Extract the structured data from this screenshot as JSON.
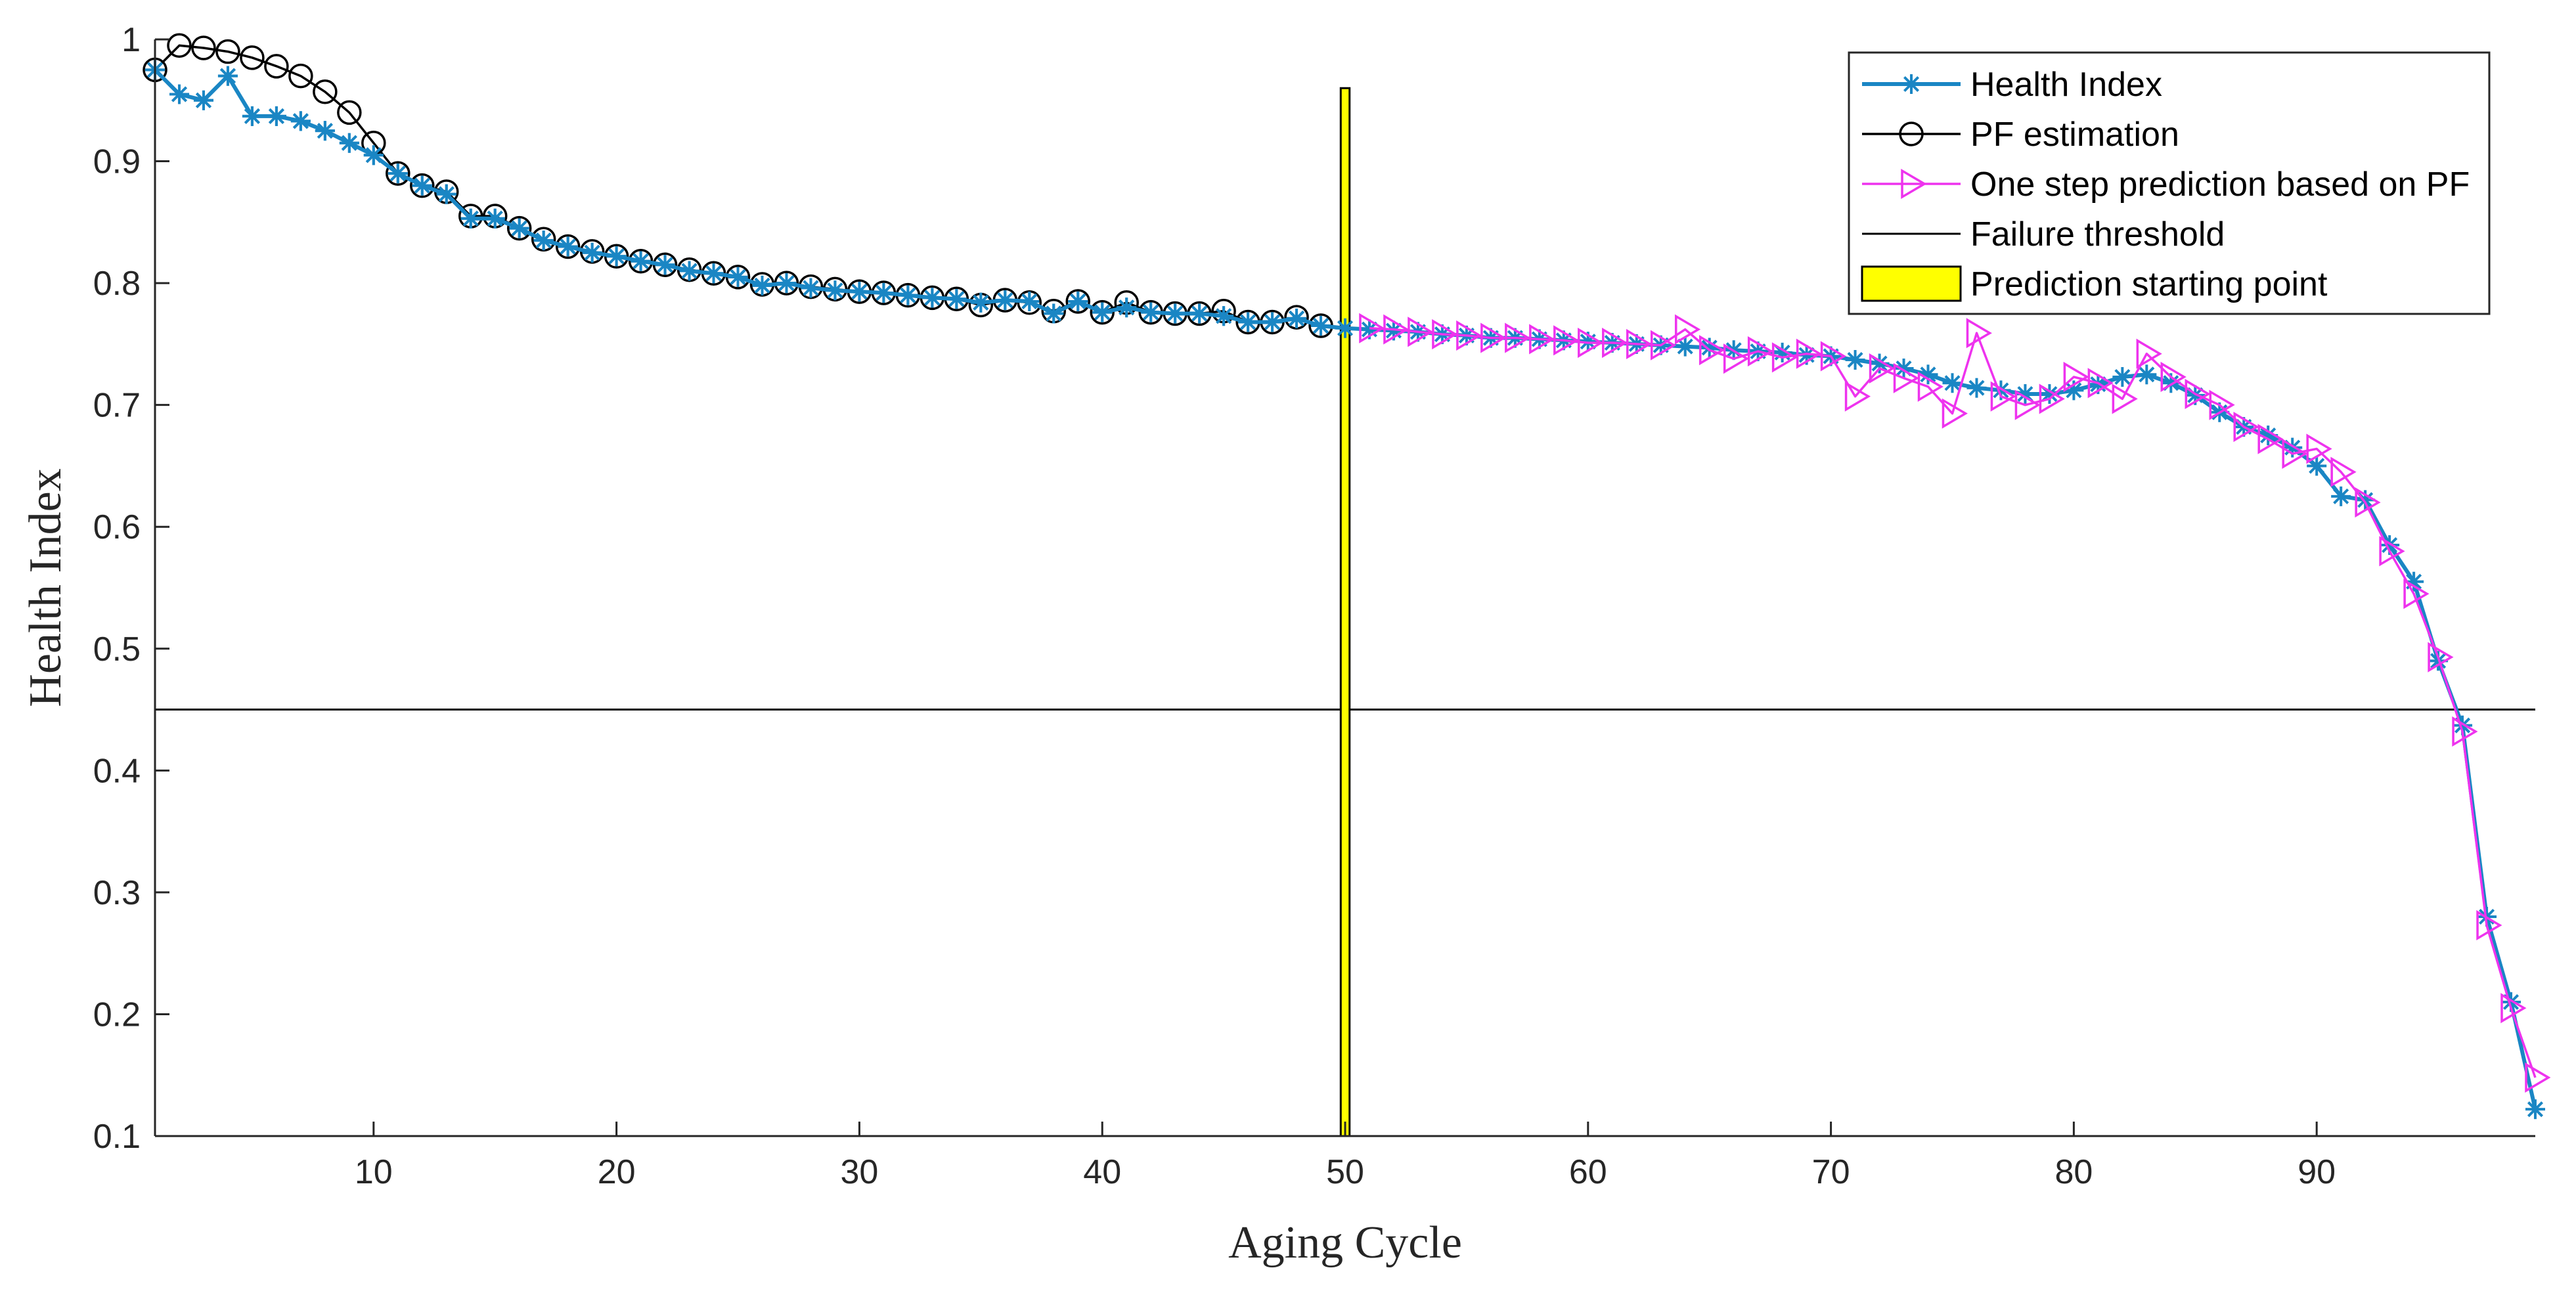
{
  "chart_data": {
    "type": "line",
    "title": "",
    "xlabel": "Aging Cycle",
    "ylabel": "Health Index",
    "xlim": [
      1,
      99
    ],
    "ylim": [
      0.1,
      1.0
    ],
    "xticks": [
      10,
      20,
      30,
      40,
      50,
      60,
      70,
      80,
      90
    ],
    "yticks": [
      0.1,
      0.2,
      0.3,
      0.4,
      0.5,
      0.6,
      0.7,
      0.8,
      0.9,
      1
    ],
    "grid": false,
    "legend_position": "top-right",
    "colors": {
      "health_index": "#1a86c4",
      "pf_estimation": "#000000",
      "one_step": "#ee33ee",
      "threshold": "#000000",
      "bar_fill": "#ffff00",
      "bar_edge": "#000000",
      "axis": "#262626"
    },
    "series": [
      {
        "name": "Health Index",
        "marker": "asterisk",
        "x": [
          1,
          2,
          3,
          4,
          5,
          6,
          7,
          8,
          9,
          10,
          11,
          12,
          13,
          14,
          15,
          16,
          17,
          18,
          19,
          20,
          21,
          22,
          23,
          24,
          25,
          26,
          27,
          28,
          29,
          30,
          31,
          32,
          33,
          34,
          35,
          36,
          37,
          38,
          39,
          40,
          41,
          42,
          43,
          44,
          45,
          46,
          47,
          48,
          49,
          50,
          51,
          52,
          53,
          54,
          55,
          56,
          57,
          58,
          59,
          60,
          61,
          62,
          63,
          64,
          65,
          66,
          67,
          68,
          69,
          70,
          71,
          72,
          73,
          74,
          75,
          76,
          77,
          78,
          79,
          80,
          81,
          82,
          83,
          84,
          85,
          86,
          87,
          88,
          89,
          90,
          91,
          92,
          93,
          94,
          95,
          96,
          97,
          98,
          99
        ],
        "values": [
          0.975,
          0.955,
          0.95,
          0.97,
          0.937,
          0.937,
          0.933,
          0.925,
          0.915,
          0.905,
          0.89,
          0.88,
          0.873,
          0.853,
          0.853,
          0.845,
          0.835,
          0.83,
          0.825,
          0.822,
          0.818,
          0.815,
          0.81,
          0.808,
          0.805,
          0.798,
          0.8,
          0.796,
          0.794,
          0.793,
          0.792,
          0.79,
          0.788,
          0.787,
          0.784,
          0.786,
          0.785,
          0.775,
          0.785,
          0.776,
          0.78,
          0.776,
          0.775,
          0.775,
          0.773,
          0.768,
          0.768,
          0.771,
          0.765,
          0.763,
          0.762,
          0.761,
          0.76,
          0.758,
          0.757,
          0.755,
          0.755,
          0.754,
          0.753,
          0.752,
          0.751,
          0.75,
          0.749,
          0.748,
          0.747,
          0.745,
          0.744,
          0.743,
          0.741,
          0.74,
          0.737,
          0.734,
          0.73,
          0.725,
          0.718,
          0.714,
          0.712,
          0.709,
          0.709,
          0.712,
          0.717,
          0.723,
          0.725,
          0.718,
          0.708,
          0.694,
          0.682,
          0.675,
          0.665,
          0.65,
          0.625,
          0.622,
          0.585,
          0.555,
          0.49,
          0.437,
          0.28,
          0.21,
          0.122
        ]
      },
      {
        "name": "PF estimation",
        "marker": "circle",
        "x": [
          1,
          2,
          3,
          4,
          5,
          6,
          7,
          8,
          9,
          10,
          11,
          12,
          13,
          14,
          15,
          16,
          17,
          18,
          19,
          20,
          21,
          22,
          23,
          24,
          25,
          26,
          27,
          28,
          29,
          30,
          31,
          32,
          33,
          34,
          35,
          36,
          37,
          38,
          39,
          40,
          41,
          42,
          43,
          44,
          45,
          46,
          47,
          48,
          49
        ],
        "values": [
          0.975,
          0.995,
          0.993,
          0.99,
          0.985,
          0.978,
          0.97,
          0.957,
          0.94,
          0.915,
          0.89,
          0.88,
          0.875,
          0.855,
          0.855,
          0.845,
          0.836,
          0.83,
          0.826,
          0.822,
          0.818,
          0.815,
          0.811,
          0.808,
          0.805,
          0.799,
          0.8,
          0.797,
          0.795,
          0.793,
          0.792,
          0.79,
          0.788,
          0.787,
          0.782,
          0.786,
          0.784,
          0.777,
          0.785,
          0.776,
          0.784,
          0.776,
          0.775,
          0.775,
          0.777,
          0.768,
          0.768,
          0.772,
          0.765
        ]
      },
      {
        "name": "One step prediction based on PF",
        "marker": "triangle-right",
        "x": [
          51,
          52,
          53,
          54,
          55,
          56,
          57,
          58,
          59,
          60,
          61,
          62,
          63,
          64,
          65,
          66,
          67,
          68,
          69,
          70,
          71,
          72,
          73,
          74,
          75,
          76,
          77,
          78,
          79,
          80,
          81,
          82,
          83,
          84,
          85,
          86,
          87,
          88,
          89,
          90,
          91,
          92,
          93,
          94,
          95,
          96,
          97,
          98,
          99
        ],
        "values": [
          0.763,
          0.762,
          0.76,
          0.758,
          0.757,
          0.755,
          0.755,
          0.754,
          0.753,
          0.751,
          0.751,
          0.75,
          0.749,
          0.762,
          0.745,
          0.738,
          0.744,
          0.739,
          0.742,
          0.74,
          0.707,
          0.73,
          0.722,
          0.715,
          0.693,
          0.759,
          0.707,
          0.7,
          0.705,
          0.723,
          0.718,
          0.705,
          0.742,
          0.723,
          0.709,
          0.7,
          0.682,
          0.672,
          0.66,
          0.664,
          0.645,
          0.62,
          0.58,
          0.545,
          0.493,
          0.432,
          0.273,
          0.205,
          0.148
        ]
      }
    ],
    "threshold": {
      "name": "Failure threshold",
      "value": 0.45
    },
    "bar": {
      "name": "Prediction starting point",
      "x": 50,
      "height": 0.96,
      "width": 0.8
    },
    "legend": [
      "Health Index",
      "PF estimation",
      "One step prediction based on PF",
      "Failure threshold",
      "Prediction starting point"
    ]
  }
}
